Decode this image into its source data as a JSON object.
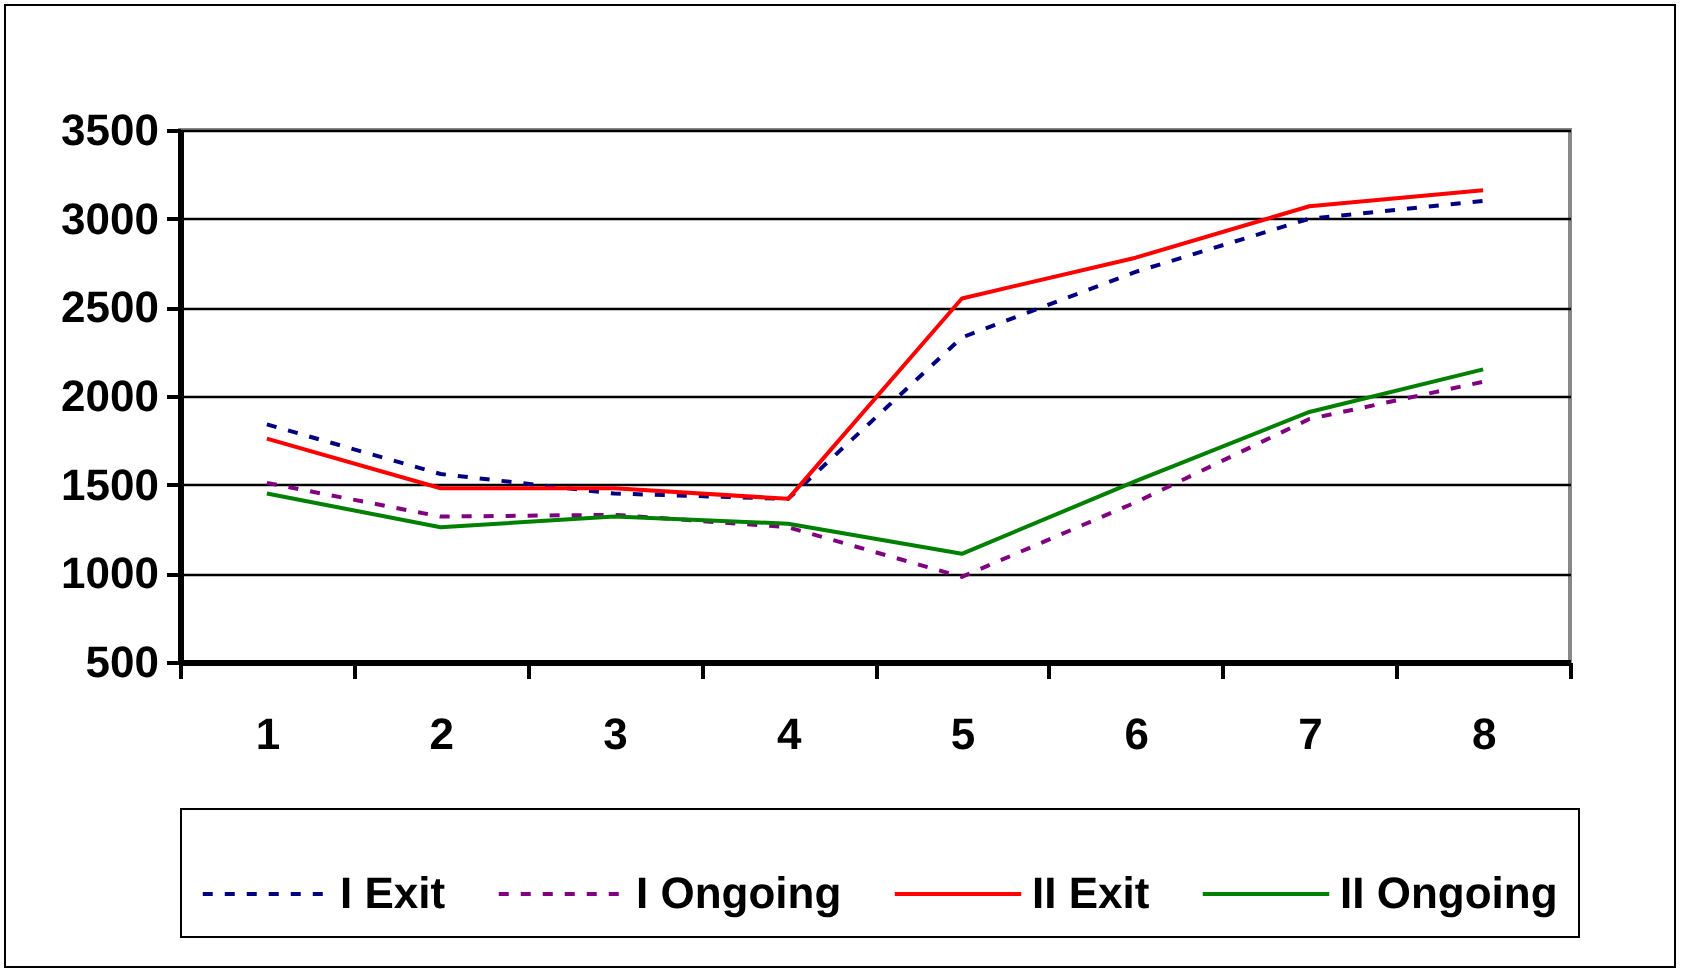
{
  "chart_data": {
    "type": "line",
    "categories": [
      "1",
      "2",
      "3",
      "4",
      "5",
      "6",
      "7",
      "8"
    ],
    "series": [
      {
        "name": "I Exit",
        "color": "#000080",
        "line_style": "dashed",
        "values": [
          1840,
          1560,
          1450,
          1420,
          2330,
          2700,
          3000,
          3100
        ]
      },
      {
        "name": "I Ongoing",
        "color": "#800080",
        "line_style": "dashed",
        "values": [
          1510,
          1320,
          1330,
          1260,
          980,
          1400,
          1870,
          2080
        ]
      },
      {
        "name": "II Exit",
        "color": "#ff0000",
        "line_style": "solid",
        "values": [
          1760,
          1480,
          1480,
          1420,
          2550,
          2780,
          3070,
          3160
        ]
      },
      {
        "name": "II Ongoing",
        "color": "#008000",
        "line_style": "solid",
        "values": [
          1450,
          1260,
          1320,
          1280,
          1110,
          1520,
          1910,
          2150
        ]
      }
    ],
    "ylim": [
      500,
      3500
    ],
    "yticks": [
      500,
      1000,
      1500,
      2000,
      2500,
      3000,
      3500
    ],
    "grid": "y",
    "legend": "bottom"
  }
}
